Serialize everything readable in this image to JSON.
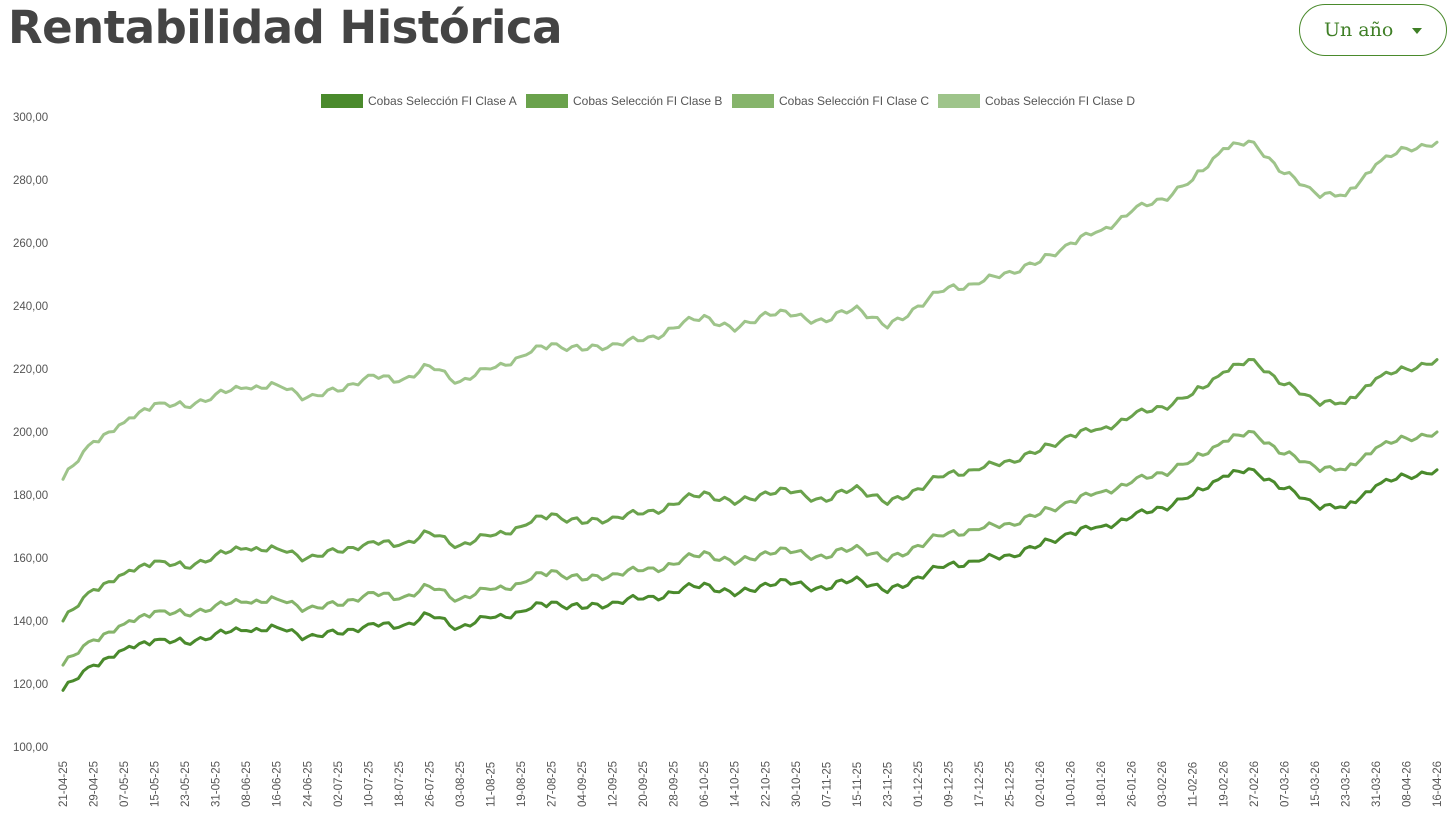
{
  "page": {
    "title": "Rentabilidad Histórica",
    "period_selector": {
      "value": "Un año",
      "icon": "chevron-down-icon"
    }
  },
  "chart_data": {
    "type": "line",
    "title": "",
    "xlabel": "",
    "ylabel": "",
    "ylim": [
      100,
      300
    ],
    "y_ticks": [
      "100,00",
      "120,00",
      "140,00",
      "160,00",
      "180,00",
      "200,00",
      "220,00",
      "240,00",
      "260,00",
      "280,00",
      "300,00"
    ],
    "x_tick_labels": [
      "21-04-25",
      "29-04-25",
      "07-05-25",
      "15-05-25",
      "23-05-25",
      "31-05-25",
      "08-06-25",
      "16-06-25",
      "24-06-25",
      "02-07-25",
      "10-07-25",
      "18-07-25",
      "26-07-25",
      "03-08-25",
      "11-08-25",
      "19-08-25",
      "27-08-25",
      "04-09-25",
      "12-09-25",
      "20-09-25",
      "28-09-25",
      "06-10-25",
      "14-10-25",
      "22-10-25",
      "30-10-25",
      "07-11-25",
      "15-11-25",
      "23-11-25",
      "01-12-25",
      "09-12-25",
      "17-12-25",
      "25-12-25",
      "02-01-26",
      "10-01-26",
      "18-01-26",
      "26-01-26",
      "03-02-26",
      "11-02-26",
      "19-02-26",
      "27-02-26",
      "07-03-26",
      "15-03-26",
      "23-03-26",
      "31-03-26",
      "08-04-26",
      "16-04-26"
    ],
    "grid": false,
    "legend_position": "top-center",
    "series": [
      {
        "name": "Cobas Selección FI Clase A",
        "color": "#4a8a2c",
        "values": [
          118,
          126,
          131,
          134,
          133,
          136,
          137,
          138,
          135,
          136,
          139,
          138,
          142,
          138,
          141,
          143,
          146,
          144,
          146,
          147,
          149,
          152,
          148,
          152,
          152,
          150,
          154,
          149,
          154,
          158,
          159,
          161,
          164,
          168,
          170,
          173,
          176,
          180,
          186,
          188,
          182,
          177,
          176,
          183,
          186,
          188
        ]
      },
      {
        "name": "Cobas Selección FI Clase B",
        "color": "#6aa24c",
        "values": [
          140,
          150,
          155,
          159,
          157,
          161,
          163,
          163,
          160,
          162,
          165,
          164,
          168,
          164,
          167,
          170,
          174,
          171,
          173,
          174,
          177,
          181,
          177,
          181,
          181,
          178,
          183,
          177,
          182,
          187,
          188,
          191,
          194,
          199,
          201,
          205,
          208,
          212,
          219,
          223,
          215,
          210,
          209,
          217,
          220,
          223
        ]
      },
      {
        "name": "Cobas Selección FI Clase C",
        "color": "#86b46b",
        "values": [
          126,
          134,
          139,
          143,
          142,
          145,
          146,
          147,
          144,
          145,
          149,
          147,
          151,
          147,
          150,
          152,
          156,
          153,
          155,
          156,
          158,
          162,
          158,
          162,
          162,
          160,
          164,
          159,
          164,
          168,
          169,
          171,
          174,
          178,
          181,
          184,
          187,
          191,
          197,
          200,
          193,
          189,
          188,
          195,
          198,
          200
        ]
      },
      {
        "name": "Cobas Selección FI Clase D",
        "color": "#9ec48a",
        "values": [
          185,
          197,
          203,
          209,
          208,
          212,
          214,
          215,
          211,
          213,
          218,
          216,
          221,
          216,
          220,
          224,
          228,
          226,
          228,
          229,
          233,
          237,
          232,
          238,
          237,
          235,
          240,
          233,
          240,
          246,
          247,
          251,
          254,
          260,
          264,
          270,
          274,
          280,
          290,
          292,
          282,
          276,
          275,
          285,
          290,
          292
        ]
      }
    ]
  }
}
